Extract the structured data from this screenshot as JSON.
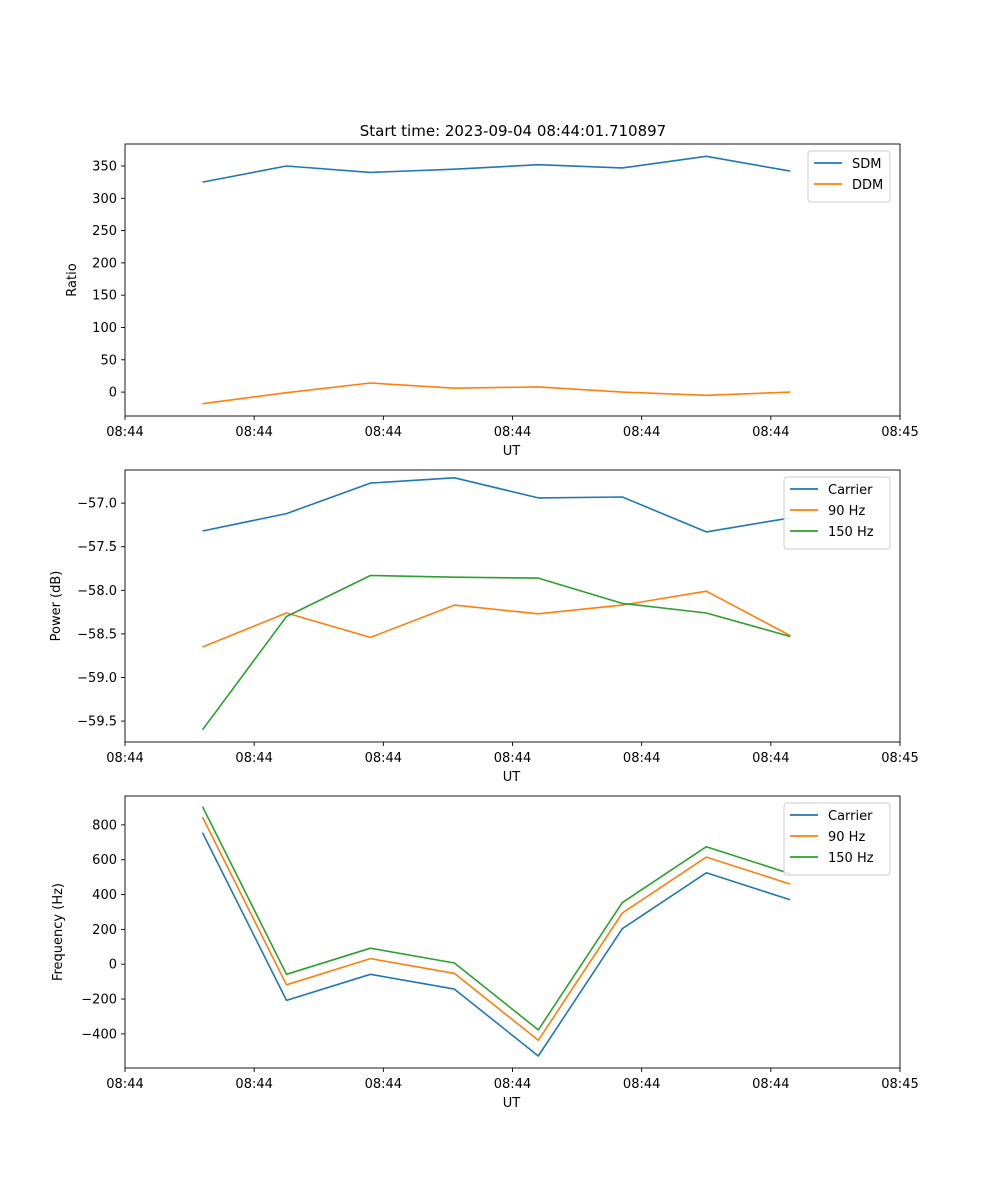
{
  "figure_title": "Start time: 2023-09-04 08:44:01.710897",
  "colors": {
    "blue": "#1f77b4",
    "orange": "#ff7f0e",
    "green": "#2ca02c"
  },
  "chart_data": [
    {
      "type": "line",
      "title": "Start time: 2023-09-04 08:44:01.710897",
      "xlabel": "UT",
      "ylabel": "Ratio",
      "x": [
        0.6,
        1.25,
        1.9,
        2.55,
        3.2,
        3.85,
        4.5,
        5.15
      ],
      "xlim": [
        0,
        6
      ],
      "x_ticks": [
        0,
        1,
        2,
        3,
        4,
        5,
        6
      ],
      "x_tick_labels": [
        "08:44",
        "08:44",
        "08:44",
        "08:44",
        "08:44",
        "08:44",
        "08:45"
      ],
      "ylim": [
        -37,
        384
      ],
      "y_ticks": [
        0,
        50,
        100,
        150,
        200,
        250,
        300,
        350
      ],
      "y_tick_labels": [
        "0",
        "50",
        "100",
        "150",
        "200",
        "250",
        "300",
        "350"
      ],
      "legend_position": "top-right",
      "series": [
        {
          "name": "SDM",
          "color": "#1f77b4",
          "values": [
            325,
            350,
            340,
            345,
            352,
            347,
            365,
            342
          ]
        },
        {
          "name": "DDM",
          "color": "#ff7f0e",
          "values": [
            -18,
            -1,
            14,
            6,
            8,
            0,
            -5,
            0
          ]
        }
      ]
    },
    {
      "type": "line",
      "title": "",
      "xlabel": "UT",
      "ylabel": "Power (dB)",
      "x": [
        0.6,
        1.25,
        1.9,
        2.55,
        3.2,
        3.85,
        4.5,
        5.15
      ],
      "xlim": [
        0,
        6
      ],
      "x_ticks": [
        0,
        1,
        2,
        3,
        4,
        5,
        6
      ],
      "x_tick_labels": [
        "08:44",
        "08:44",
        "08:44",
        "08:44",
        "08:44",
        "08:44",
        "08:45"
      ],
      "ylim": [
        -59.74,
        -56.62
      ],
      "y_ticks": [
        -59.5,
        -59.0,
        -58.5,
        -58.0,
        -57.5,
        -57.0
      ],
      "y_tick_labels": [
        "−59.5",
        "−59.0",
        "−58.5",
        "−58.0",
        "−57.5",
        "−57.0"
      ],
      "legend_position": "top-right",
      "series": [
        {
          "name": "Carrier",
          "color": "#1f77b4",
          "values": [
            -57.32,
            -57.12,
            -56.77,
            -56.71,
            -56.94,
            -56.93,
            -57.33,
            -57.17
          ]
        },
        {
          "name": "90 Hz",
          "color": "#ff7f0e",
          "values": [
            -58.65,
            -58.26,
            -58.54,
            -58.17,
            -58.27,
            -58.17,
            -58.01,
            -58.52
          ]
        },
        {
          "name": "150 Hz",
          "color": "#2ca02c",
          "values": [
            -59.6,
            -58.3,
            -57.83,
            -57.85,
            -57.86,
            -58.15,
            -58.26,
            -58.53
          ]
        }
      ]
    },
    {
      "type": "line",
      "title": "",
      "xlabel": "UT",
      "ylabel": "Frequency (Hz)",
      "x": [
        0.6,
        1.25,
        1.9,
        2.55,
        3.2,
        3.85,
        4.5,
        5.15
      ],
      "xlim": [
        0,
        6
      ],
      "x_ticks": [
        0,
        1,
        2,
        3,
        4,
        5,
        6
      ],
      "x_tick_labels": [
        "08:44",
        "08:44",
        "08:44",
        "08:44",
        "08:44",
        "08:44",
        "08:45"
      ],
      "ylim": [
        -596,
        966
      ],
      "y_ticks": [
        -400,
        -200,
        0,
        200,
        400,
        600,
        800
      ],
      "y_tick_labels": [
        "−400",
        "−200",
        "0",
        "200",
        "400",
        "600",
        "800"
      ],
      "legend_position": "top-right",
      "series": [
        {
          "name": "Carrier",
          "color": "#1f77b4",
          "values": [
            755,
            -208,
            -58,
            -143,
            -527,
            204,
            525,
            370
          ]
        },
        {
          "name": "90 Hz",
          "color": "#ff7f0e",
          "values": [
            845,
            -118,
            32,
            -53,
            -437,
            294,
            615,
            460
          ]
        },
        {
          "name": "150 Hz",
          "color": "#2ca02c",
          "values": [
            905,
            -58,
            92,
            7,
            -377,
            354,
            675,
            520
          ]
        }
      ]
    }
  ]
}
